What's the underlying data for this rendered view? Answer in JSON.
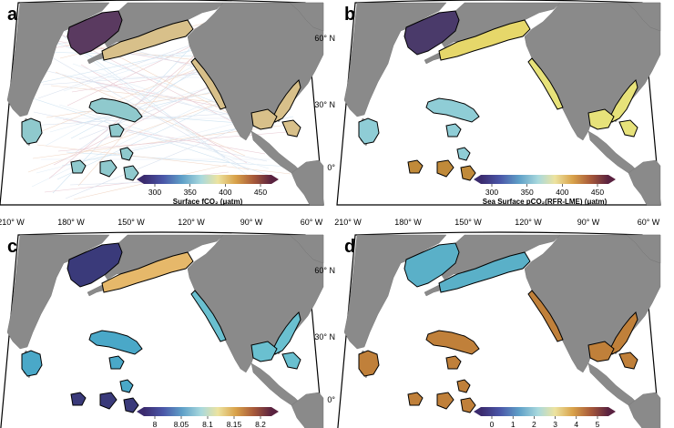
{
  "panels": [
    {
      "letter": "a",
      "colorbar": {
        "ticks": [
          "300",
          "350",
          "400",
          "450"
        ],
        "label": "Surface fCO₂ (μatm)"
      },
      "colors": {
        "ocean": "#ffffff",
        "pacific_eq": "#c9dff0",
        "gulf": "#d8c08a",
        "bering": "#5a3a60",
        "lme": "#8fc9cd"
      }
    },
    {
      "letter": "b",
      "colorbar": {
        "ticks": [
          "300",
          "350",
          "400",
          "450"
        ],
        "label": "Sea Surface pCO₂(RFR-LME) (μatm)"
      },
      "colors": {
        "gulf": "#e6d76a",
        "bering": "#4a3a6a",
        "hawaii": "#8fcdd6",
        "equator": "#c08a3a",
        "east_coast": "#e7e27a"
      }
    },
    {
      "letter": "c",
      "colorbar": {
        "ticks": [
          "8",
          "8.05",
          "8.1",
          "8.15",
          "8.2"
        ],
        "label": ""
      },
      "colors": {
        "gulf": "#e6b86a",
        "bering": "#3a3a7a",
        "hawaii": "#4aa8c8",
        "equator": "#3a3a7a",
        "east_coast": "#6ac0d0"
      }
    },
    {
      "letter": "d",
      "colorbar": {
        "ticks": [
          "0",
          "1",
          "2",
          "3",
          "4",
          "5"
        ],
        "label": ""
      },
      "colors": {
        "gulf": "#5ab0c8",
        "bering": "#5ab0c8",
        "hawaii": "#c0803a",
        "equator": "#c0803a",
        "east_coast": "#c0803a"
      }
    }
  ],
  "lat_labels": [
    "60° N",
    "30° N",
    "0°"
  ],
  "lon_labels": [
    "210° W",
    "180° W",
    "150° W",
    "120° W",
    "90° W",
    "60° W"
  ]
}
